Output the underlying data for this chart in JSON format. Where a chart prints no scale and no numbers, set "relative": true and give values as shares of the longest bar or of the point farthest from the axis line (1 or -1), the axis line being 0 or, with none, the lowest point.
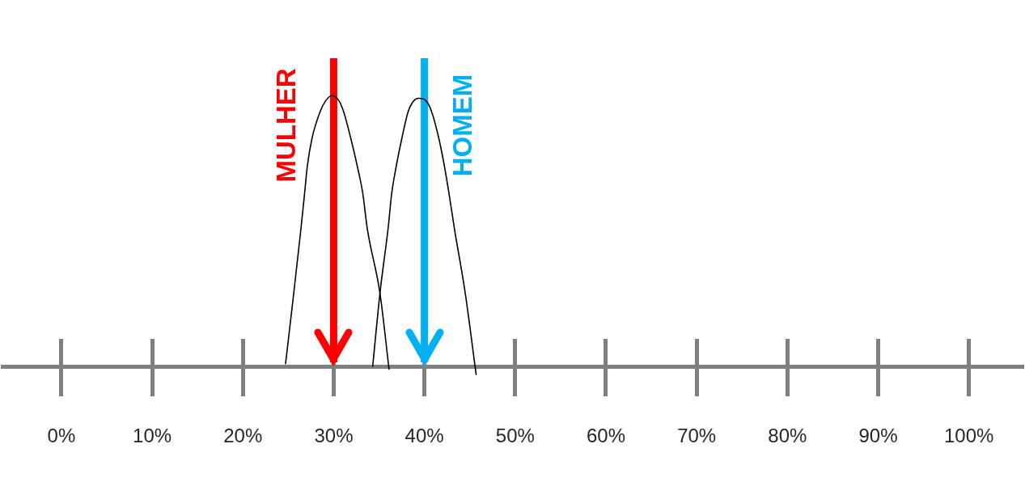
{
  "chart_data": {
    "type": "line",
    "relative": true,
    "tick_labels": "x",
    "xlim": [
      -6.5,
      106
    ],
    "xticks": [
      {
        "value": 0,
        "label": "0%"
      },
      {
        "value": 10,
        "label": "10%"
      },
      {
        "value": 20,
        "label": "20%"
      },
      {
        "value": 30,
        "label": "30%"
      },
      {
        "value": 40,
        "label": "40%"
      },
      {
        "value": 50,
        "label": "50%"
      },
      {
        "value": 60,
        "label": "60%"
      },
      {
        "value": 70,
        "label": "70%"
      },
      {
        "value": 80,
        "label": "80%"
      },
      {
        "value": 90,
        "label": "90%"
      },
      {
        "value": 100,
        "label": "100%"
      }
    ],
    "series": [
      {
        "color": "#000000",
        "x": [
          24.7,
          25.6,
          26.4,
          26.8,
          27.1,
          27.6,
          28.5,
          29.1,
          29.8,
          30.6,
          31.1,
          31.9,
          32.6,
          33.2,
          33.7,
          35.1,
          36.1
        ],
        "values": [
          0.01,
          0.27,
          0.51,
          0.64,
          0.74,
          0.84,
          0.94,
          0.98,
          1,
          0.98,
          0.94,
          0.84,
          0.74,
          0.64,
          0.51,
          0.27,
          -0.01
        ]
      },
      {
        "color": "#000000",
        "x": [
          34.3,
          35.1,
          36.0,
          36.4,
          36.9,
          37.5,
          38.2,
          38.8,
          39.4,
          40.2,
          40.8,
          41.6,
          42.2,
          42.7,
          43.3,
          44.5,
          45.7
        ],
        "values": [
          0,
          0.27,
          0.51,
          0.64,
          0.74,
          0.84,
          0.94,
          0.98,
          0.99,
          0.98,
          0.94,
          0.84,
          0.74,
          0.64,
          0.51,
          0.27,
          -0.03
        ]
      }
    ],
    "ref_lines": [
      {
        "axis": "x",
        "value": 30,
        "label": "MULHER",
        "color": "#ff0000"
      },
      {
        "axis": "x",
        "value": 40,
        "label": "HOMEM",
        "color": "#00b0f0"
      }
    ]
  }
}
